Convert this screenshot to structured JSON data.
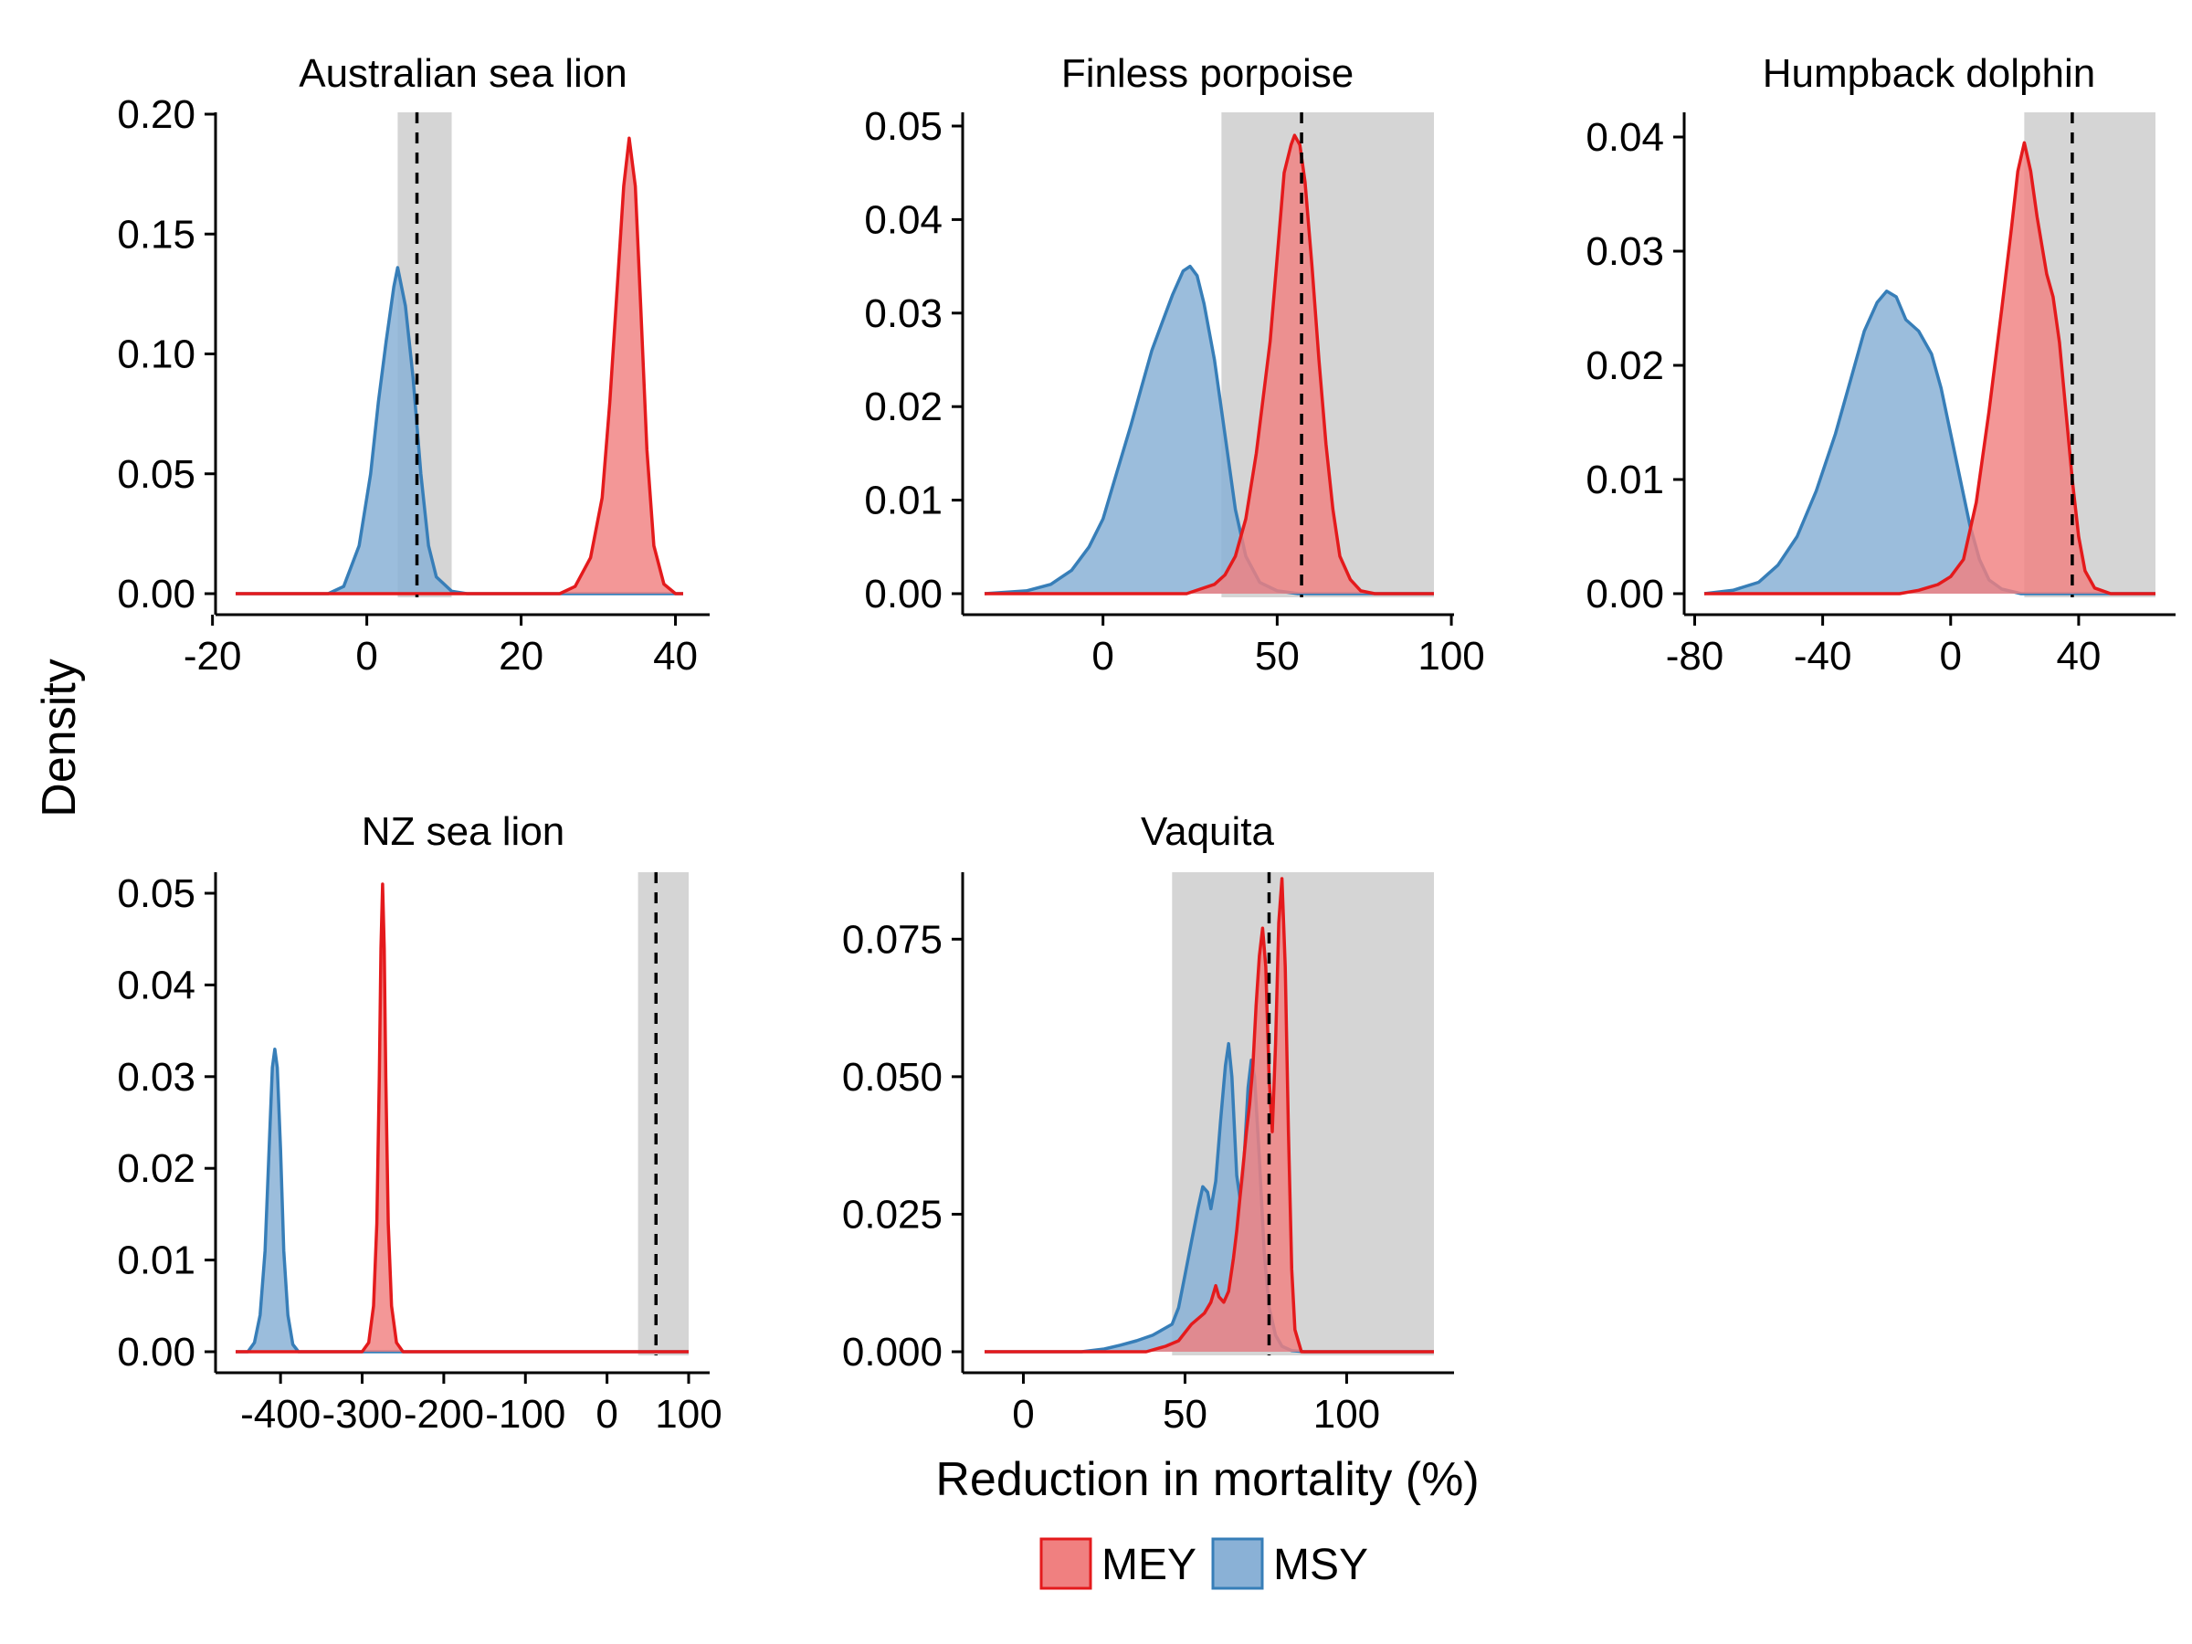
{
  "colors": {
    "MEY": {
      "fill": "#F08080",
      "stroke": "#E41A1C"
    },
    "MSY": {
      "fill": "#8AB1D6",
      "stroke": "#377EB8"
    },
    "band": "#D5D5D5"
  },
  "xlabel": "Reduction in mortality (%)",
  "ylabel": "Density",
  "legend": {
    "position": "bottom",
    "items": [
      "MEY",
      "MSY"
    ]
  },
  "chart_data": [
    {
      "type": "area",
      "title": "Australian sea lion",
      "xlim": [
        -17,
        41
      ],
      "ylim": [
        0,
        0.2
      ],
      "xticks": [
        -20,
        0,
        20,
        40
      ],
      "xtick_labels": [
        "-20",
        "0",
        "20",
        "40"
      ],
      "yticks": [
        0,
        0.05,
        0.1,
        0.15,
        0.2
      ],
      "ytick_labels": [
        "0.00",
        "0.05",
        "0.10",
        "0.15",
        "0.20"
      ],
      "band": [
        4,
        11
      ],
      "vline": 6.5,
      "series": [
        {
          "name": "MSY",
          "points": [
            [
              -17,
              0
            ],
            [
              -5,
              0
            ],
            [
              -3,
              0.003
            ],
            [
              -1,
              0.02
            ],
            [
              0.5,
              0.05
            ],
            [
              1.5,
              0.08
            ],
            [
              2.5,
              0.105
            ],
            [
              3.5,
              0.128
            ],
            [
              4,
              0.136
            ],
            [
              5,
              0.12
            ],
            [
              6,
              0.09
            ],
            [
              7,
              0.05
            ],
            [
              8,
              0.02
            ],
            [
              9,
              0.007
            ],
            [
              11,
              0.001
            ],
            [
              13,
              0
            ],
            [
              41,
              0
            ]
          ]
        },
        {
          "name": "MEY",
          "points": [
            [
              -17,
              0
            ],
            [
              25,
              0
            ],
            [
              27,
              0.003
            ],
            [
              29,
              0.015
            ],
            [
              30.5,
              0.04
            ],
            [
              31.5,
              0.08
            ],
            [
              32.5,
              0.13
            ],
            [
              33.3,
              0.17
            ],
            [
              34,
              0.19
            ],
            [
              34.8,
              0.17
            ],
            [
              35.5,
              0.12
            ],
            [
              36.3,
              0.06
            ],
            [
              37.2,
              0.02
            ],
            [
              38.5,
              0.004
            ],
            [
              40,
              0
            ],
            [
              41,
              0
            ]
          ]
        }
      ]
    },
    {
      "type": "area",
      "title": "Finless porpoise",
      "xlim": [
        -34,
        95
      ],
      "ylim": [
        0,
        0.05
      ],
      "xticks": [
        0,
        50,
        100
      ],
      "xtick_labels": [
        "0",
        "50",
        "100"
      ],
      "yticks": [
        0,
        0.01,
        0.02,
        0.03,
        0.04,
        0.05
      ],
      "ytick_labels": [
        "0.00",
        "0.01",
        "0.02",
        "0.03",
        "0.04",
        "0.05"
      ],
      "band": [
        34,
        95
      ],
      "vline": 57,
      "series": [
        {
          "name": "MSY",
          "points": [
            [
              -34,
              0
            ],
            [
              -22,
              0.0003
            ],
            [
              -15,
              0.001
            ],
            [
              -9,
              0.0025
            ],
            [
              -4,
              0.005
            ],
            [
              0,
              0.008
            ],
            [
              4,
              0.013
            ],
            [
              8,
              0.018
            ],
            [
              11,
              0.022
            ],
            [
              14,
              0.026
            ],
            [
              17,
              0.029
            ],
            [
              20,
              0.032
            ],
            [
              23,
              0.0345
            ],
            [
              25,
              0.035
            ],
            [
              27,
              0.034
            ],
            [
              29,
              0.031
            ],
            [
              32,
              0.025
            ],
            [
              35,
              0.017
            ],
            [
              38,
              0.009
            ],
            [
              41,
              0.004
            ],
            [
              45,
              0.0012
            ],
            [
              50,
              0.0003
            ],
            [
              56,
              0
            ],
            [
              95,
              0
            ]
          ]
        },
        {
          "name": "MEY",
          "points": [
            [
              -34,
              0
            ],
            [
              24,
              0
            ],
            [
              28,
              0.0005
            ],
            [
              32,
              0.001
            ],
            [
              35,
              0.002
            ],
            [
              38,
              0.004
            ],
            [
              41,
              0.008
            ],
            [
              44,
              0.015
            ],
            [
              46,
              0.021
            ],
            [
              48,
              0.027
            ],
            [
              50,
              0.036
            ],
            [
              52,
              0.045
            ],
            [
              54,
              0.048
            ],
            [
              55,
              0.049
            ],
            [
              56.5,
              0.048
            ],
            [
              58,
              0.044
            ],
            [
              60,
              0.035
            ],
            [
              62,
              0.025
            ],
            [
              64,
              0.016
            ],
            [
              66,
              0.009
            ],
            [
              68,
              0.004
            ],
            [
              71,
              0.0015
            ],
            [
              74,
              0.0003
            ],
            [
              78,
              0
            ],
            [
              95,
              0
            ]
          ]
        }
      ]
    },
    {
      "type": "area",
      "title": "Humpback dolphin",
      "xlim": [
        -77,
        64
      ],
      "ylim": [
        0,
        0.04
      ],
      "xticks": [
        -80,
        -40,
        0,
        40
      ],
      "xtick_labels": [
        "-80",
        "-40",
        "0",
        "40"
      ],
      "yticks": [
        0,
        0.01,
        0.02,
        0.03,
        0.04
      ],
      "ytick_labels": [
        "0.00",
        "0.01",
        "0.02",
        "0.03",
        "0.04"
      ],
      "band": [
        23,
        64
      ],
      "vline": 38,
      "series": [
        {
          "name": "MSY",
          "points": [
            [
              -77,
              0
            ],
            [
              -68,
              0.0003
            ],
            [
              -60,
              0.001
            ],
            [
              -54,
              0.0025
            ],
            [
              -48,
              0.005
            ],
            [
              -42,
              0.009
            ],
            [
              -36,
              0.014
            ],
            [
              -31,
              0.019
            ],
            [
              -27,
              0.023
            ],
            [
              -23,
              0.0255
            ],
            [
              -20,
              0.0265
            ],
            [
              -17,
              0.026
            ],
            [
              -14,
              0.024
            ],
            [
              -10,
              0.023
            ],
            [
              -6,
              0.021
            ],
            [
              -3,
              0.018
            ],
            [
              0,
              0.014
            ],
            [
              3,
              0.01
            ],
            [
              6,
              0.006
            ],
            [
              9,
              0.003
            ],
            [
              12,
              0.0012
            ],
            [
              16,
              0.0004
            ],
            [
              22,
              0
            ],
            [
              64,
              0
            ]
          ]
        },
        {
          "name": "MEY",
          "points": [
            [
              -77,
              0
            ],
            [
              -16,
              0
            ],
            [
              -10,
              0.0003
            ],
            [
              -4,
              0.0008
            ],
            [
              0,
              0.0015
            ],
            [
              4,
              0.003
            ],
            [
              8,
              0.008
            ],
            [
              12,
              0.016
            ],
            [
              16,
              0.025
            ],
            [
              19,
              0.032
            ],
            [
              21,
              0.037
            ],
            [
              23,
              0.0395
            ],
            [
              25,
              0.037
            ],
            [
              27,
              0.033
            ],
            [
              30,
              0.028
            ],
            [
              32,
              0.026
            ],
            [
              34,
              0.022
            ],
            [
              36,
              0.016
            ],
            [
              38,
              0.01
            ],
            [
              40,
              0.005
            ],
            [
              42,
              0.002
            ],
            [
              45,
              0.0005
            ],
            [
              50,
              0
            ],
            [
              64,
              0
            ]
          ]
        }
      ]
    },
    {
      "type": "area",
      "title": "NZ sea lion",
      "xlim": [
        -455,
        100
      ],
      "ylim": [
        0,
        0.05
      ],
      "xticks": [
        -400,
        -300,
        -200,
        -100,
        0,
        100
      ],
      "xtick_labels": [
        "-400",
        "-300",
        "-200",
        "-100",
        "0",
        "100"
      ],
      "yticks": [
        0,
        0.01,
        0.02,
        0.03,
        0.04,
        0.05
      ],
      "ytick_labels": [
        "0.00",
        "0.01",
        "0.02",
        "0.03",
        "0.04",
        "0.05"
      ],
      "band": [
        38,
        100
      ],
      "vline": 60,
      "series": [
        {
          "name": "MSY",
          "points": [
            [
              -455,
              0
            ],
            [
              -440,
              0
            ],
            [
              -432,
              0.001
            ],
            [
              -425,
              0.004
            ],
            [
              -419,
              0.011
            ],
            [
              -414,
              0.022
            ],
            [
              -410,
              0.031
            ],
            [
              -407,
              0.033
            ],
            [
              -404,
              0.031
            ],
            [
              -400,
              0.022
            ],
            [
              -396,
              0.011
            ],
            [
              -391,
              0.004
            ],
            [
              -385,
              0.0008
            ],
            [
              -378,
              0
            ],
            [
              100,
              0
            ]
          ]
        },
        {
          "name": "MEY",
          "points": [
            [
              -455,
              0
            ],
            [
              -300,
              0
            ],
            [
              -292,
              0.001
            ],
            [
              -286,
              0.005
            ],
            [
              -282,
              0.014
            ],
            [
              -279,
              0.03
            ],
            [
              -277,
              0.044
            ],
            [
              -275,
              0.051
            ],
            [
              -273,
              0.044
            ],
            [
              -271,
              0.03
            ],
            [
              -268,
              0.014
            ],
            [
              -264,
              0.005
            ],
            [
              -258,
              0.001
            ],
            [
              -250,
              0
            ],
            [
              100,
              0
            ]
          ]
        }
      ]
    },
    {
      "type": "area",
      "title": "Vaquita",
      "xlim": [
        -12,
        127
      ],
      "ylim": [
        0,
        0.088
      ],
      "xticks": [
        0,
        50,
        100
      ],
      "xtick_labels": [
        "0",
        "50",
        "100"
      ],
      "yticks": [
        0,
        0.025,
        0.05,
        0.075
      ],
      "ytick_labels": [
        "0.000",
        "0.025",
        "0.050",
        "0.075"
      ],
      "band": [
        46,
        127
      ],
      "vline": 76,
      "series": [
        {
          "name": "MSY",
          "points": [
            [
              -12,
              0
            ],
            [
              18,
              0
            ],
            [
              25,
              0.0005
            ],
            [
              30,
              0.0012
            ],
            [
              35,
              0.002
            ],
            [
              40,
              0.003
            ],
            [
              43,
              0.004
            ],
            [
              46,
              0.005
            ],
            [
              48,
              0.008
            ],
            [
              50,
              0.014
            ],
            [
              52,
              0.02
            ],
            [
              54,
              0.026
            ],
            [
              55.5,
              0.03
            ],
            [
              57,
              0.029
            ],
            [
              58,
              0.026
            ],
            [
              59.5,
              0.031
            ],
            [
              61,
              0.042
            ],
            [
              62.5,
              0.052
            ],
            [
              63.5,
              0.056
            ],
            [
              64.5,
              0.05
            ],
            [
              66,
              0.032
            ],
            [
              67,
              0.028
            ],
            [
              68,
              0.032
            ],
            [
              69.5,
              0.048
            ],
            [
              70.5,
              0.053
            ],
            [
              71.5,
              0.05
            ],
            [
              73,
              0.035
            ],
            [
              74.5,
              0.018
            ],
            [
              76,
              0.008
            ],
            [
              78,
              0.003
            ],
            [
              80,
              0.001
            ],
            [
              83,
              0.0002
            ],
            [
              87,
              0
            ],
            [
              127,
              0
            ]
          ]
        },
        {
          "name": "MEY",
          "points": [
            [
              -12,
              0
            ],
            [
              38,
              0
            ],
            [
              44,
              0.001
            ],
            [
              48,
              0.002
            ],
            [
              52,
              0.005
            ],
            [
              56,
              0.007
            ],
            [
              58,
              0.009
            ],
            [
              59.5,
              0.012
            ],
            [
              60.5,
              0.01
            ],
            [
              62,
              0.009
            ],
            [
              63.5,
              0.011
            ],
            [
              65,
              0.017
            ],
            [
              66,
              0.022
            ],
            [
              67,
              0.028
            ],
            [
              68,
              0.034
            ],
            [
              69,
              0.04
            ],
            [
              70,
              0.045
            ],
            [
              71,
              0.052
            ],
            [
              72,
              0.063
            ],
            [
              73,
              0.072
            ],
            [
              74,
              0.077
            ],
            [
              75,
              0.07
            ],
            [
              76,
              0.05
            ],
            [
              77,
              0.04
            ],
            [
              78,
              0.056
            ],
            [
              79,
              0.078
            ],
            [
              80,
              0.086
            ],
            [
              81,
              0.07
            ],
            [
              82,
              0.04
            ],
            [
              83,
              0.015
            ],
            [
              84,
              0.004
            ],
            [
              86,
              0
            ],
            [
              127,
              0
            ]
          ]
        }
      ]
    }
  ]
}
